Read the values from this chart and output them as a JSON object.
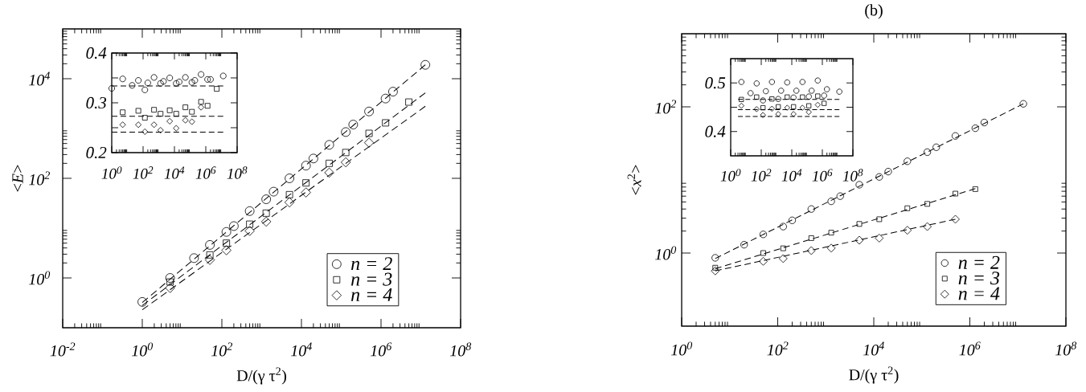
{
  "chart_data": [
    {
      "type": "scatter",
      "xlabel": "D/(γ τ$^{2}$)",
      "ylabel": "<*E*>",
      "log": "xy",
      "xlim": [
        0.01,
        100000000
      ],
      "ylim": [
        0.1,
        100000
      ],
      "xticks": [
        {
          "value": 0.01,
          "label": "10$^{-2}$"
        },
        {
          "value": 1,
          "label": "10$^{0}$"
        },
        {
          "value": 100,
          "label": "10$^{2}$"
        },
        {
          "value": 10000,
          "label": "10$^{4}$"
        },
        {
          "value": 1000000,
          "label": "10$^{6}$"
        },
        {
          "value": 100000000,
          "label": "10$^{8}$"
        }
      ],
      "yticks": [
        {
          "value": 1,
          "label": "10$^{0}$"
        },
        {
          "value": 100,
          "label": "10$^{2}$"
        },
        {
          "value": 10000,
          "label": "10$^{4}$"
        }
      ],
      "legend": "bottom right",
      "series": [
        {
          "name": "n = 2",
          "color": "#000000",
          "marker": "circle",
          "x": [
            1,
            5,
            20,
            50,
            130,
            200,
            500,
            1300,
            2000,
            5000,
            13000,
            20000,
            50000,
            130000,
            200000,
            500000,
            1300000,
            2000000,
            13000000
          ],
          "values": [
            0.33,
            1.0,
            2.5,
            4.6,
            8.4,
            11,
            22,
            38,
            54,
            100,
            180,
            250,
            470,
            850,
            1200,
            2200,
            4000,
            5500,
            19000
          ]
        },
        {
          "name": "n = 3",
          "color": "#000000",
          "marker": "square",
          "x": [
            5,
            50,
            130,
            500,
            1300,
            5000,
            13000,
            50000,
            130000,
            500000,
            1300000,
            5000000
          ],
          "values": [
            0.83,
            2.9,
            5.0,
            12,
            20,
            47,
            81,
            200,
            330,
            800,
            1300,
            3400
          ]
        },
        {
          "name": "n = 4",
          "color": "#000000",
          "marker": "diamond",
          "x": [
            5,
            50,
            130,
            500,
            1300,
            5000,
            13000,
            50000,
            130000,
            500000
          ],
          "values": [
            0.63,
            2.3,
            3.6,
            8.8,
            13.5,
            33,
            52,
            130,
            210,
            520
          ]
        },
        {
          "type": "line",
          "color": "#000000",
          "line_style": "dashed",
          "marker": "none",
          "x": [
            1,
            13000000
          ],
          "values": [
            0.32,
            19000
          ]
        },
        {
          "type": "line",
          "color": "#000000",
          "line_style": "dashed",
          "marker": "none",
          "x": [
            1,
            13000000
          ],
          "values": [
            0.28,
            5200
          ]
        },
        {
          "type": "line",
          "color": "#000000",
          "line_style": "dashed",
          "marker": "none",
          "x": [
            1,
            13000000
          ],
          "values": [
            0.23,
            2800
          ]
        }
      ]
    },
    {
      "type": "scatter",
      "log": "x",
      "xlim": [
        1,
        100000000
      ],
      "ylim": [
        0.2,
        0.4
      ],
      "xticks": [
        {
          "value": 1,
          "label": "10$^{0}$"
        },
        {
          "value": 100,
          "label": "10$^{2}$"
        },
        {
          "value": 10000,
          "label": "10$^{4}$"
        },
        {
          "value": 1000000,
          "label": "10$^{6}$"
        },
        {
          "value": 100000000,
          "label": "10$^{8}$"
        }
      ],
      "yticks": [
        0.2,
        {
          "value": 0.25,
          "label": null
        },
        0.3,
        {
          "value": 0.35,
          "label": null
        },
        0.4
      ],
      "series": [
        {
          "color": "#000000",
          "marker": "circle",
          "x": [
            1,
            5,
            20,
            50,
            130,
            200,
            500,
            1300,
            2000,
            5000,
            13000,
            20000,
            50000,
            130000,
            200000,
            500000,
            1300000,
            2000000,
            13000000
          ],
          "values": [
            0.329,
            0.348,
            0.335,
            0.345,
            0.326,
            0.34,
            0.351,
            0.339,
            0.343,
            0.35,
            0.339,
            0.342,
            0.351,
            0.341,
            0.345,
            0.357,
            0.347,
            0.347,
            0.354
          ]
        },
        {
          "color": "#000000",
          "marker": "square",
          "x": [
            5,
            50,
            130,
            500,
            1300,
            5000,
            13000,
            50000,
            130000,
            500000,
            1300000,
            5000000
          ],
          "values": [
            0.281,
            0.284,
            0.27,
            0.286,
            0.278,
            0.285,
            0.278,
            0.291,
            0.282,
            0.302,
            0.294,
            0.328
          ]
        },
        {
          "color": "#000000",
          "marker": "diamond",
          "x": [
            5,
            50,
            130,
            500,
            1300,
            5000,
            13000,
            50000,
            130000,
            500000
          ],
          "values": [
            0.256,
            0.256,
            0.242,
            0.256,
            0.245,
            0.263,
            0.249,
            0.265,
            0.262,
            0.291
          ]
        },
        {
          "type": "line",
          "color": "#000000",
          "line_style": "dashed",
          "marker": "none",
          "x": [
            1,
            13000000
          ],
          "values": [
            0.334,
            0.334
          ]
        },
        {
          "type": "line",
          "color": "#000000",
          "line_style": "dashed",
          "marker": "none",
          "x": [
            1,
            13000000
          ],
          "values": [
            0.273,
            0.273
          ]
        },
        {
          "type": "line",
          "color": "#000000",
          "line_style": "dashed",
          "marker": "none",
          "x": [
            1,
            13000000
          ],
          "values": [
            0.241,
            0.241
          ]
        }
      ]
    },
    {
      "type": "scatter",
      "title": "(b)",
      "xlabel": "D/(γ τ$^{2}$)",
      "ylabel": "<*x*$^{2}$>",
      "log": "xy",
      "xlim": [
        1,
        100000000
      ],
      "ylim": [
        0.1,
        1000
      ],
      "xticks": [
        {
          "value": 1,
          "label": "10$^{0}$"
        },
        {
          "value": 100,
          "label": "10$^{2}$"
        },
        {
          "value": 10000,
          "label": "10$^{4}$"
        },
        {
          "value": 1000000,
          "label": "10$^{6}$"
        },
        {
          "value": 100000000,
          "label": "10$^{8}$"
        }
      ],
      "yticks": [
        {
          "value": 1,
          "label": "10$^{0}$"
        },
        {
          "value": 100,
          "label": "10$^{2}$"
        }
      ],
      "legend": "bottom right",
      "series": [
        {
          "name": "n = 2",
          "color": "#000000",
          "marker": "circle",
          "x": [
            5,
            20,
            50,
            130,
            200,
            500,
            1300,
            2000,
            5000,
            13000,
            20000,
            50000,
            130000,
            200000,
            500000,
            1300000,
            2000000,
            13000000
          ],
          "values": [
            0.86,
            1.3,
            1.8,
            2.3,
            2.8,
            4.0,
            5.1,
            6.0,
            8.6,
            11,
            13,
            18,
            24,
            28,
            40,
            51,
            61,
            110
          ]
        },
        {
          "name": "n = 3",
          "color": "#000000",
          "marker": "square",
          "x": [
            5,
            50,
            130,
            500,
            1300,
            5000,
            13000,
            50000,
            130000,
            500000,
            1300000
          ],
          "values": [
            0.63,
            1.0,
            1.16,
            1.6,
            1.9,
            2.5,
            2.9,
            4.1,
            4.7,
            6.5,
            7.5
          ]
        },
        {
          "name": "n = 4",
          "color": "#000000",
          "marker": "diamond",
          "x": [
            5,
            50,
            130,
            500,
            1300,
            5000,
            13000,
            50000,
            130000,
            500000
          ],
          "values": [
            0.57,
            0.77,
            0.84,
            1.08,
            1.17,
            1.5,
            1.6,
            2.05,
            2.3,
            2.9
          ]
        },
        {
          "type": "line",
          "color": "#000000",
          "line_style": "dashed",
          "marker": "none",
          "x": [
            5,
            13000000
          ],
          "values": [
            0.84,
            110
          ]
        },
        {
          "type": "line",
          "color": "#000000",
          "line_style": "dashed",
          "marker": "none",
          "x": [
            5,
            1300000
          ],
          "values": [
            0.61,
            7.6
          ]
        },
        {
          "type": "line",
          "color": "#000000",
          "line_style": "dashed",
          "marker": "none",
          "x": [
            5,
            500000
          ],
          "values": [
            0.57,
            2.9
          ]
        }
      ]
    },
    {
      "type": "scatter",
      "log": "x",
      "xlim": [
        1,
        100000000
      ],
      "ylim": [
        0.35,
        0.55
      ],
      "xticks": [
        {
          "value": 1,
          "label": "10$^{0}$"
        },
        {
          "value": 100,
          "label": "10$^{2}$"
        },
        {
          "value": 10000,
          "label": "10$^{4}$"
        },
        {
          "value": 1000000,
          "label": "10$^{6}$"
        },
        {
          "value": 100000000,
          "label": "10$^{8}$"
        }
      ],
      "yticks": [
        0.4,
        {
          "value": 0.45,
          "label": null
        },
        0.5
      ],
      "series": [
        {
          "color": "#000000",
          "marker": "circle",
          "x": [
            5,
            20,
            50,
            130,
            200,
            500,
            1300,
            2000,
            5000,
            13000,
            20000,
            50000,
            130000,
            200000,
            500000,
            1300000,
            2000000,
            13000000
          ],
          "values": [
            0.502,
            0.479,
            0.499,
            0.464,
            0.483,
            0.502,
            0.467,
            0.484,
            0.501,
            0.47,
            0.484,
            0.502,
            0.472,
            0.484,
            0.505,
            0.474,
            0.487,
            0.482
          ]
        },
        {
          "color": "#000000",
          "marker": "square",
          "x": [
            5,
            50,
            130,
            500,
            1300,
            5000,
            13000,
            50000,
            130000,
            500000,
            1300000
          ],
          "values": [
            0.466,
            0.471,
            0.449,
            0.467,
            0.451,
            0.471,
            0.451,
            0.471,
            0.453,
            0.473,
            0.458
          ]
        },
        {
          "color": "#000000",
          "marker": "diamond",
          "x": [
            5,
            50,
            130,
            500,
            1300,
            5000,
            13000,
            50000,
            130000,
            500000
          ],
          "values": [
            0.453,
            0.446,
            0.434,
            0.447,
            0.436,
            0.449,
            0.436,
            0.449,
            0.44,
            0.455
          ]
        },
        {
          "type": "line",
          "color": "#000000",
          "line_style": "dashed",
          "marker": "none",
          "x": [
            3,
            13000000
          ],
          "values": [
            0.466,
            0.466
          ]
        },
        {
          "type": "line",
          "color": "#000000",
          "line_style": "dashed",
          "marker": "none",
          "x": [
            3,
            13000000
          ],
          "values": [
            0.445,
            0.445
          ]
        },
        {
          "type": "line",
          "color": "#000000",
          "line_style": "dashed",
          "marker": "none",
          "x": [
            3,
            13000000
          ],
          "values": [
            0.431,
            0.431
          ]
        }
      ]
    }
  ]
}
